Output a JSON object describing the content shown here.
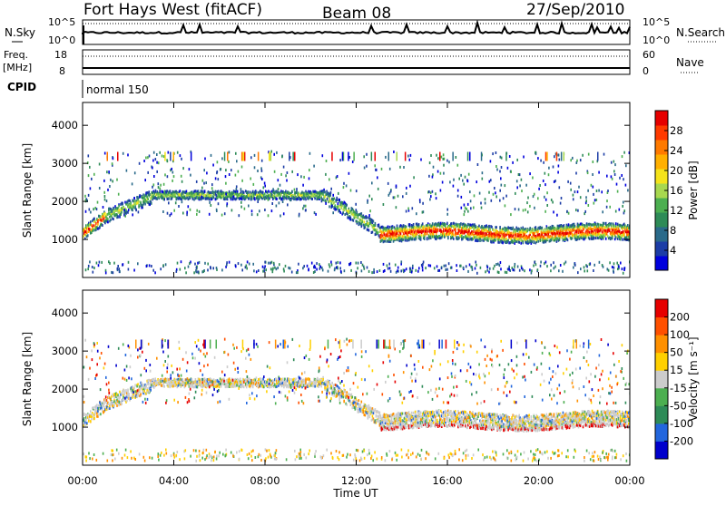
{
  "header": {
    "station": "Fort Hays West (fitACF)",
    "beam": "Beam 08",
    "date": "27/Sep/2010"
  },
  "top_panels": {
    "nsky_label": "N.Sky",
    "nsky_ticks": [
      "10^5",
      "10^0"
    ],
    "nsearch_label": "N.Search",
    "nsearch_ticks": [
      "10^5",
      "10^0"
    ],
    "freq_label": "Freq.",
    "freq_unit": "[MHz]",
    "freq_ticks": [
      "18",
      "8"
    ],
    "nave_label": "Nave",
    "nave_ticks": [
      "60",
      "0"
    ],
    "cpid_label": "CPID",
    "cpid_value": "normal 150"
  },
  "chart_data": [
    {
      "type": "heatmap",
      "name": "power-panel",
      "parameter": "Power",
      "ylabel": "Slant Range [km]",
      "ylim": [
        0,
        4600
      ],
      "yticks": [
        "4000",
        "3000",
        "2000",
        "1000"
      ],
      "xlim": [
        0,
        24
      ],
      "colorbar": {
        "label": "Power [dB]",
        "ticks": [
          "28",
          "24",
          "20",
          "16",
          "12",
          "8",
          "4"
        ],
        "colors": [
          "#0000dd",
          "#1c3da6",
          "#2a6a8a",
          "#2e8b57",
          "#4caf50",
          "#a8d84f",
          "#f5e31a",
          "#ffb000",
          "#ff7a00",
          "#ff3a00",
          "#e60000"
        ]
      },
      "echo_bands_km": [
        {
          "t_start": 0.0,
          "t_end": 1.0,
          "range_start": 1200,
          "range_end": 1700
        },
        {
          "t_start": 1.0,
          "t_end": 3.0,
          "range_start": 1700,
          "range_end": 2000
        },
        {
          "t_start": 3.0,
          "t_end": 10.5,
          "range_start": 2050,
          "range_end": 2250
        },
        {
          "t_start": 10.5,
          "t_end": 13.0,
          "range_start": 2200,
          "range_end": 1200
        },
        {
          "t_start": 13.0,
          "t_end": 24.0,
          "range_start": 1100,
          "range_end": 1100
        }
      ]
    },
    {
      "type": "heatmap",
      "name": "velocity-panel",
      "parameter": "Velocity",
      "ylabel": "Slant Range [km]",
      "ylim": [
        0,
        4600
      ],
      "yticks": [
        "4000",
        "3000",
        "2000",
        "1000"
      ],
      "xlim": [
        0,
        24
      ],
      "xticks": [
        "00:00",
        "04:00",
        "08:00",
        "12:00",
        "16:00",
        "20:00",
        "00:00"
      ],
      "xlabel": "Time UT",
      "colorbar": {
        "label": "Velocity [m s⁻¹]",
        "ticks": [
          "200",
          "100",
          "50",
          "15",
          "-15",
          "-50",
          "-100",
          "-200"
        ],
        "colors": [
          "#0000cc",
          "#2266dd",
          "#2e8b57",
          "#4caf50",
          "#cccccc",
          "#ffd000",
          "#ff9000",
          "#ff5000",
          "#e60000"
        ]
      }
    }
  ]
}
